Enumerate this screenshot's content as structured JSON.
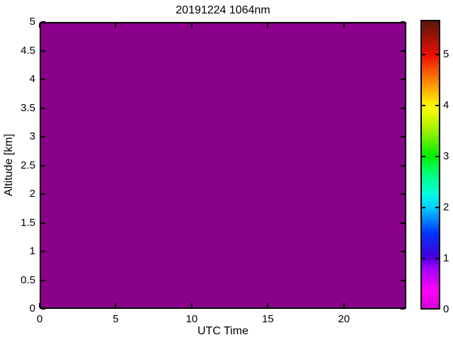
{
  "chart_data": {
    "type": "heatmap",
    "title": "20191224 1064nm",
    "xlabel": "UTC Time",
    "ylabel": "Altitude [km]",
    "x_range": [
      0,
      24.1
    ],
    "y_range": [
      0,
      5
    ],
    "grid": false,
    "x_ticks": [
      {
        "v": 0,
        "label": "0"
      },
      {
        "v": 5,
        "label": "5"
      },
      {
        "v": 10,
        "label": "10"
      },
      {
        "v": 15,
        "label": "15"
      },
      {
        "v": 20,
        "label": "20"
      }
    ],
    "y_ticks": [
      {
        "v": 0,
        "label": "0"
      },
      {
        "v": 0.5,
        "label": "0.5"
      },
      {
        "v": 1,
        "label": "1"
      },
      {
        "v": 1.5,
        "label": "1.5"
      },
      {
        "v": 2,
        "label": "2"
      },
      {
        "v": 2.5,
        "label": "2.5"
      },
      {
        "v": 3,
        "label": "3"
      },
      {
        "v": 3.5,
        "label": "3.5"
      },
      {
        "v": 4,
        "label": "4"
      },
      {
        "v": 4.5,
        "label": "4.5"
      },
      {
        "v": 5,
        "label": "5"
      }
    ],
    "values": {
      "uniform": true,
      "value": 0,
      "fill_color": "#8b008b",
      "description": "entire time-altitude field is a single constant color at the colormap minimum"
    },
    "colorbar": {
      "range": [
        0,
        5.68
      ],
      "ticks": [
        {
          "v": 0,
          "label": "0"
        },
        {
          "v": 1,
          "label": "1"
        },
        {
          "v": 2,
          "label": "2"
        },
        {
          "v": 3,
          "label": "3"
        },
        {
          "v": 4,
          "label": "4"
        },
        {
          "v": 5,
          "label": "5"
        }
      ],
      "colormap_stops": [
        {
          "pct": 0,
          "color": "#d400d4"
        },
        {
          "pct": 6,
          "color": "#ff00ff"
        },
        {
          "pct": 14,
          "color": "#a000ff"
        },
        {
          "pct": 18,
          "color": "#4400dd"
        },
        {
          "pct": 26,
          "color": "#0033ff"
        },
        {
          "pct": 35,
          "color": "#00ccff"
        },
        {
          "pct": 40,
          "color": "#00ffdd"
        },
        {
          "pct": 47,
          "color": "#00ff77"
        },
        {
          "pct": 53,
          "color": "#00ee00"
        },
        {
          "pct": 62,
          "color": "#a0f000"
        },
        {
          "pct": 70,
          "color": "#ffff00"
        },
        {
          "pct": 79,
          "color": "#ff8800"
        },
        {
          "pct": 88,
          "color": "#ee1000"
        },
        {
          "pct": 100,
          "color": "#5a150d"
        }
      ]
    },
    "axis_color": "#000000",
    "background_color": "#ffffff"
  }
}
